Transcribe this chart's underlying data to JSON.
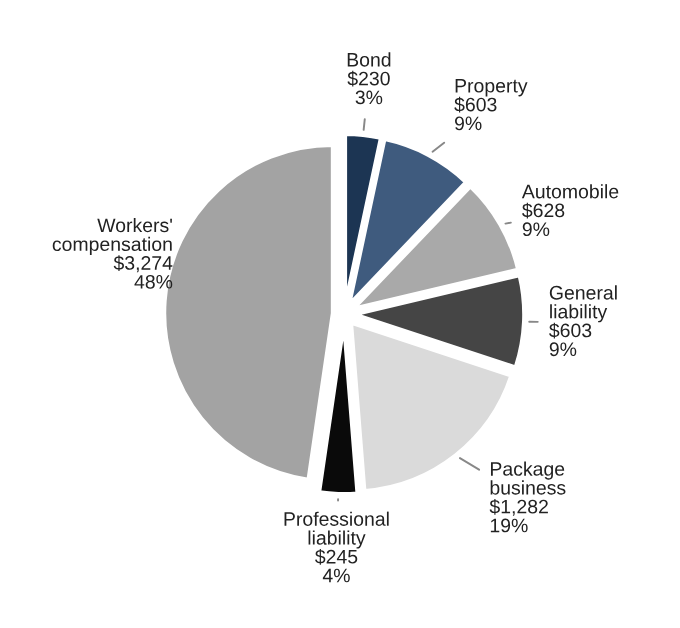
{
  "chart_data": {
    "type": "pie",
    "categories": [
      "Bond",
      "Property",
      "Automobile",
      "General liability",
      "Package business",
      "Professional liability",
      "Workers' compensation"
    ],
    "values": [
      230,
      603,
      628,
      603,
      1282,
      245,
      3274
    ],
    "value_labels": [
      "$230\n3%",
      "$603\n9%",
      "$628\n9%",
      "$603\n9%",
      "$1,282\n19%",
      "$245\n4%",
      "$3,274\n48%"
    ],
    "colors": [
      "#1c3553",
      "#3f5b7e",
      "#a9a9a9",
      "#454545",
      "#dadada",
      "#0a0a0a",
      "#a3a3a3"
    ],
    "legend": false
  }
}
